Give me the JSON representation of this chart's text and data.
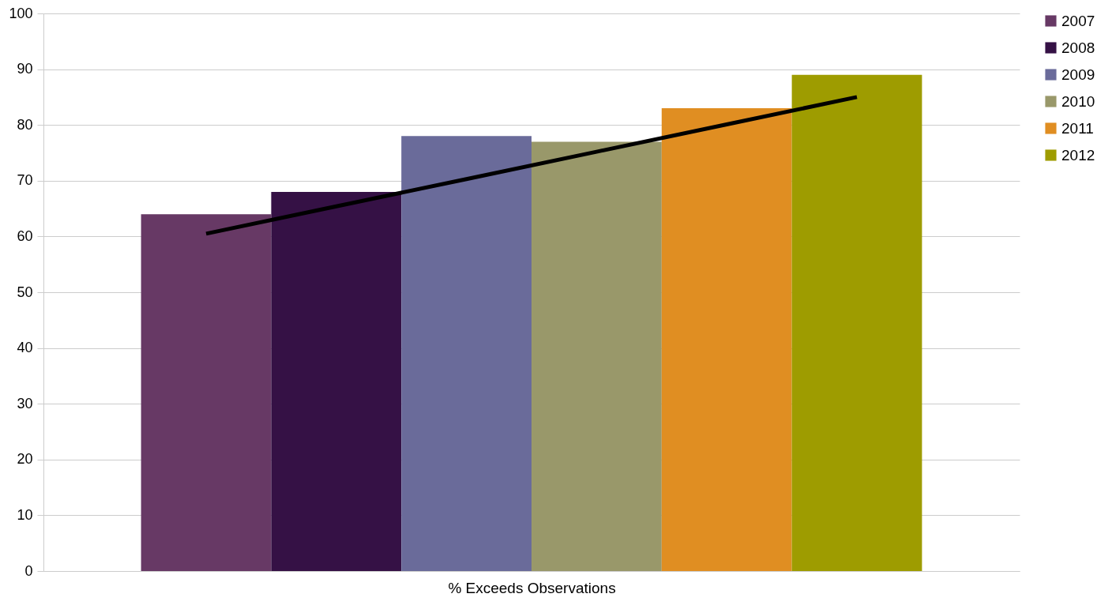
{
  "chart_data": {
    "type": "bar",
    "xlabel": "% Exceeds Observations",
    "categories": [
      null,
      null,
      null,
      null,
      null,
      null
    ],
    "series": [
      {
        "name": "2007",
        "color": "#673965",
        "values": [
          64,
          null,
          null,
          null,
          null,
          null
        ]
      },
      {
        "name": "2008",
        "color": "#351145",
        "values": [
          null,
          68,
          null,
          null,
          null,
          null
        ]
      },
      {
        "name": "2009",
        "color": "#6a6b9a",
        "values": [
          null,
          null,
          78,
          null,
          null,
          null
        ]
      },
      {
        "name": "2010",
        "color": "#99986a",
        "values": [
          null,
          null,
          null,
          77,
          null,
          null
        ]
      },
      {
        "name": "2011",
        "color": "#e08e22",
        "values": [
          null,
          null,
          null,
          null,
          83,
          null
        ]
      },
      {
        "name": "2012",
        "color": "#9e9c00",
        "values": [
          null,
          null,
          null,
          null,
          null,
          89
        ]
      },
      {
        "type": "line",
        "color": "#000000",
        "values": [
          60.5,
          65.4,
          70.3,
          75.2,
          80.1,
          85.0
        ]
      }
    ],
    "ylim": [
      0,
      100
    ],
    "yticks": [
      0,
      10,
      20,
      30,
      40,
      50,
      60,
      70,
      80,
      90,
      100
    ],
    "grid": "y",
    "legend": "right"
  }
}
